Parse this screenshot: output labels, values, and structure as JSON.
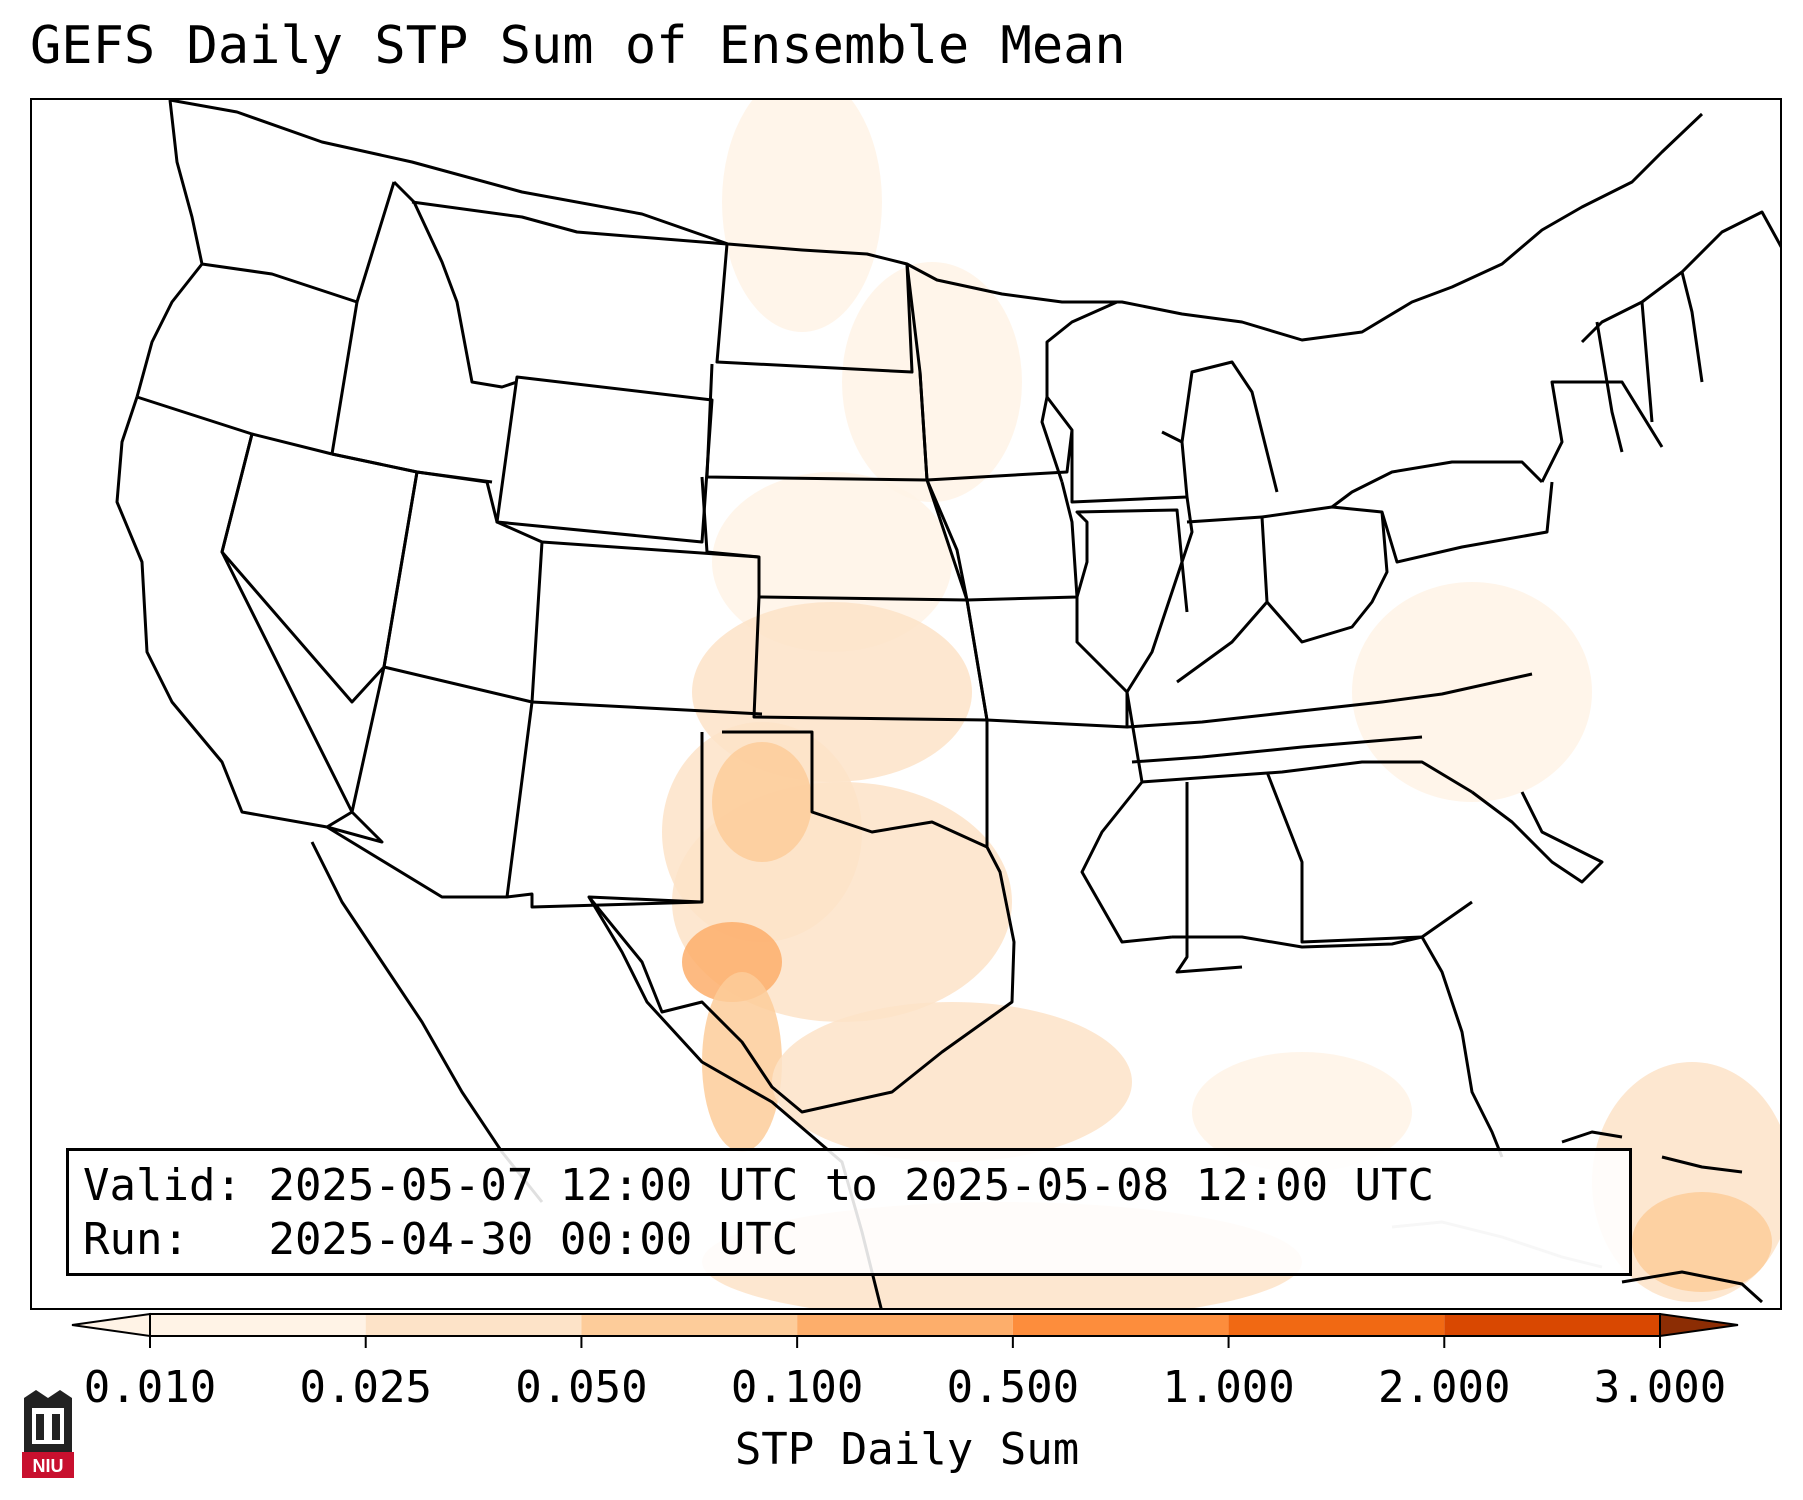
{
  "title": "GEFS Daily STP Sum of Ensemble Mean",
  "info": {
    "valid_label": "Valid:",
    "valid_value": "2025-05-07 12:00 UTC to 2025-05-08 12:00 UTC",
    "run_label": "Run:",
    "run_value": "2025-04-30 00:00 UTC"
  },
  "colorbar": {
    "label": "STP Daily Sum",
    "ticks": [
      "0.010",
      "0.025",
      "0.050",
      "0.100",
      "0.500",
      "1.000",
      "2.000",
      "3.000"
    ],
    "colors": [
      "#fff3e6",
      "#fde3c8",
      "#fdcc9a",
      "#fdae6b",
      "#fd8d3c",
      "#f16913",
      "#d94801",
      "#8c2d04"
    ],
    "extend": "both"
  },
  "logo": {
    "text": "NIU",
    "colors": {
      "shield": "#222222",
      "banner": "#c8102e"
    }
  },
  "shading_regions": [
    {
      "region": "northern plains",
      "level": 0
    },
    {
      "region": "central plains",
      "level": 1
    },
    {
      "region": "texas panhandle / eastern new mexico",
      "level": 2
    },
    {
      "region": "west texas",
      "level": 3
    },
    {
      "region": "gulf coast",
      "level": 1
    },
    {
      "region": "mid-atlantic coast",
      "level": 0
    },
    {
      "region": "caribbean",
      "level": 2
    }
  ]
}
